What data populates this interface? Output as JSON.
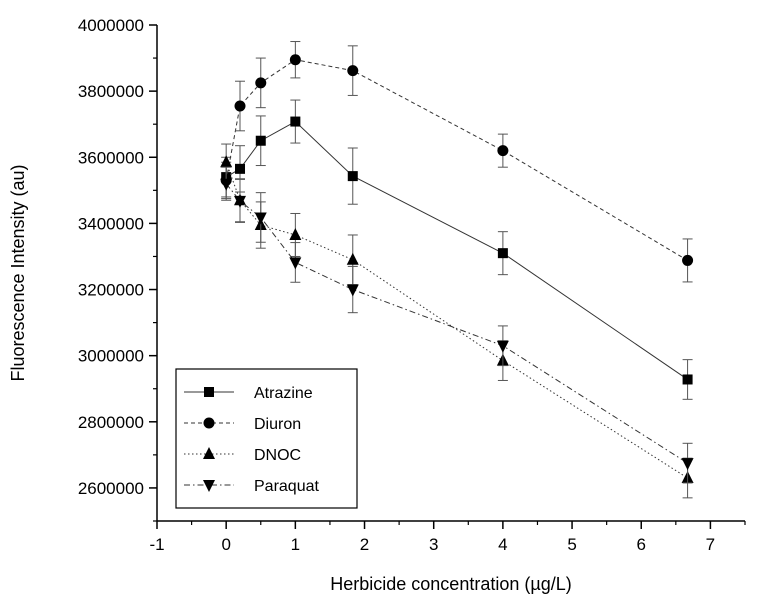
{
  "chart_data": {
    "type": "line",
    "xlabel": "Herbicide concentration (µg/L)",
    "ylabel": "Fluorescence Intensity (au)",
    "xlim": [
      -1,
      7.5
    ],
    "ylim": [
      2500000,
      4000000
    ],
    "x_ticks": [
      -1,
      0,
      1,
      2,
      3,
      4,
      5,
      6,
      7
    ],
    "y_ticks": [
      2600000,
      2800000,
      3000000,
      3200000,
      3400000,
      3600000,
      3800000,
      4000000
    ],
    "grid": false,
    "legend_position": "bottom-left",
    "series": [
      {
        "name": "Atrazine",
        "marker": "square",
        "line_style": "solid",
        "x": [
          0,
          0.2,
          0.5,
          1,
          1.83,
          4,
          6.67
        ],
        "y": [
          3540000,
          3565000,
          3650000,
          3708000,
          3543000,
          3310000,
          2928000
        ],
        "error": [
          60000,
          70000,
          75000,
          65000,
          85000,
          65000,
          60000
        ]
      },
      {
        "name": "Diuron",
        "marker": "circle",
        "line_style": "dashed",
        "x": [
          0,
          0.2,
          0.5,
          1,
          1.83,
          4,
          6.67
        ],
        "y": [
          3530000,
          3755000,
          3825000,
          3895000,
          3862000,
          3620000,
          3288000
        ],
        "error": [
          55000,
          75000,
          75000,
          55000,
          75000,
          50000,
          65000
        ]
      },
      {
        "name": "DNOC",
        "marker": "triangle-up",
        "line_style": "dotted",
        "x": [
          0,
          0.2,
          0.5,
          1,
          1.83,
          4,
          6.67
        ],
        "y": [
          3585000,
          3470000,
          3395000,
          3365000,
          3290000,
          2985000,
          2630000
        ],
        "error": [
          55000,
          65000,
          70000,
          65000,
          75000,
          60000,
          60000
        ]
      },
      {
        "name": "Paraquat",
        "marker": "triangle-down",
        "line_style": "dash-dot",
        "x": [
          0,
          0.2,
          0.5,
          1,
          1.83,
          4,
          6.67
        ],
        "y": [
          3520000,
          3468000,
          3418000,
          3282000,
          3200000,
          3030000,
          2675000
        ],
        "error": [
          50000,
          65000,
          75000,
          60000,
          70000,
          60000,
          60000
        ]
      }
    ]
  }
}
